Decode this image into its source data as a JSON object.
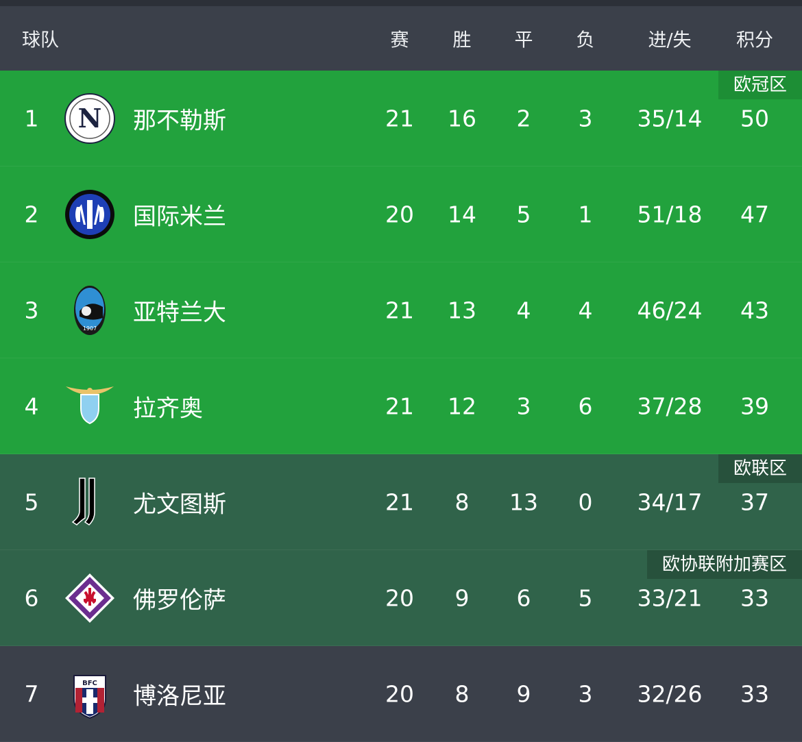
{
  "header": {
    "team": "球队",
    "played": "赛",
    "won": "胜",
    "drawn": "平",
    "lost": "负",
    "goals": "进/失",
    "points": "积分"
  },
  "colors": {
    "cl": "#22a23d",
    "europa": "#30634a",
    "none": "#3b404a"
  },
  "rows": [
    {
      "rank": "1",
      "team": "那不勒斯",
      "logo": "napoli-logo",
      "played": "21",
      "won": "16",
      "drawn": "2",
      "lost": "3",
      "goals": "35/14",
      "points": "50",
      "zone": "欧冠区",
      "zoneType": "cl"
    },
    {
      "rank": "2",
      "team": "国际米兰",
      "logo": "inter-logo",
      "played": "20",
      "won": "14",
      "drawn": "5",
      "lost": "1",
      "goals": "51/18",
      "points": "47",
      "zone": "",
      "zoneType": "cl"
    },
    {
      "rank": "3",
      "team": "亚特兰大",
      "logo": "atalanta-logo",
      "played": "21",
      "won": "13",
      "drawn": "4",
      "lost": "4",
      "goals": "46/24",
      "points": "43",
      "zone": "",
      "zoneType": "cl"
    },
    {
      "rank": "4",
      "team": "拉齐奥",
      "logo": "lazio-logo",
      "played": "21",
      "won": "12",
      "drawn": "3",
      "lost": "6",
      "goals": "37/28",
      "points": "39",
      "zone": "",
      "zoneType": "cl"
    },
    {
      "rank": "5",
      "team": "尤文图斯",
      "logo": "juventus-logo",
      "played": "21",
      "won": "8",
      "drawn": "13",
      "lost": "0",
      "goals": "34/17",
      "points": "37",
      "zone": "欧联区",
      "zoneType": "el"
    },
    {
      "rank": "6",
      "team": "佛罗伦萨",
      "logo": "fiorentina-logo",
      "played": "20",
      "won": "9",
      "drawn": "6",
      "lost": "5",
      "goals": "33/21",
      "points": "33",
      "zone": "欧协联附加赛区",
      "zoneType": "ecl"
    },
    {
      "rank": "7",
      "team": "博洛尼亚",
      "logo": "bologna-logo",
      "played": "20",
      "won": "8",
      "drawn": "9",
      "lost": "3",
      "goals": "32/26",
      "points": "33",
      "zone": "",
      "zoneType": "none"
    }
  ]
}
